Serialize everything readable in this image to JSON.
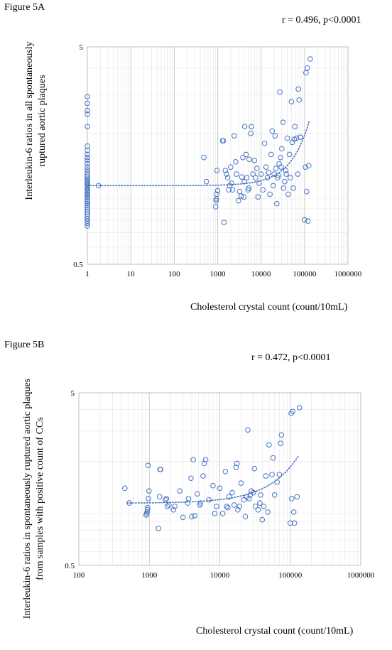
{
  "figures": {
    "a": {
      "label": "Figure 5A",
      "stat": "r = 0.496, p<0.0001",
      "ylabel_line1": "Interleukin-6 ratios in all spontaneously",
      "ylabel_line2": "ruptured aortic plaques",
      "xlabel": "Cholesterol crystal count (count/10mL)"
    },
    "b": {
      "label": "Figure 5B",
      "stat": "r = 0.472, p<0.0001",
      "ylabel_line1": "Interleukin-6 ratios in spontaneously ruptured aortic plaques",
      "ylabel_line2": "from samples with positive count of CCs",
      "xlabel": "Cholesterol crystal count (count/10mL)"
    }
  },
  "colors": {
    "marker": "#4472c4",
    "grid": "#d9d9d9",
    "axis": "#bfbfbf"
  },
  "chart_data": [
    {
      "type": "scatter",
      "title": "Figure 5A",
      "annotation": "r = 0.496, p<0.0001",
      "xlabel": "Cholesterol crystal count (count/10mL)",
      "ylabel": "Interleukin-6 ratios in all spontaneously ruptured aortic plaques",
      "xscale": "log",
      "yscale": "log",
      "xlim": [
        1,
        1000000
      ],
      "ylim": [
        0.5,
        5
      ],
      "xticks": [
        "1",
        "10",
        "100",
        "1000",
        "10000",
        "100000",
        "1000000"
      ],
      "yticks": [
        "0.5",
        "5"
      ],
      "grid": true,
      "trendline": {
        "style": "dotted",
        "x": [
          1,
          130000
        ],
        "y": [
          1.15,
          2.3
        ]
      },
      "points": [
        [
          1,
          0.75
        ],
        [
          1,
          0.77
        ],
        [
          1,
          0.79
        ],
        [
          1,
          0.81
        ],
        [
          1,
          0.83
        ],
        [
          1,
          0.85
        ],
        [
          1,
          0.87
        ],
        [
          1,
          0.89
        ],
        [
          1,
          0.91
        ],
        [
          1,
          0.93
        ],
        [
          1,
          0.95
        ],
        [
          1,
          0.97
        ],
        [
          1,
          0.99
        ],
        [
          1,
          1.01
        ],
        [
          1,
          1.03
        ],
        [
          1,
          1.05
        ],
        [
          1,
          1.07
        ],
        [
          1,
          1.09
        ],
        [
          1,
          1.11
        ],
        [
          1,
          1.13
        ],
        [
          1,
          1.15
        ],
        [
          1,
          1.17
        ],
        [
          1,
          1.19
        ],
        [
          1,
          1.21
        ],
        [
          1,
          1.23
        ],
        [
          1,
          1.26
        ],
        [
          1,
          1.29
        ],
        [
          1,
          1.32
        ],
        [
          1,
          1.36
        ],
        [
          1,
          1.4
        ],
        [
          1,
          1.45
        ],
        [
          1,
          1.5
        ],
        [
          1,
          1.55
        ],
        [
          1,
          1.6
        ],
        [
          1,
          1.67
        ],
        [
          1,
          1.75
        ],
        [
          1,
          2.15
        ],
        [
          1,
          2.45
        ],
        [
          1,
          2.55
        ],
        [
          1,
          2.75
        ],
        [
          1,
          2.95
        ],
        [
          1.8,
          1.15
        ],
        [
          480,
          1.55
        ],
        [
          550,
          1.2
        ],
        [
          900,
          0.92
        ],
        [
          920,
          0.98
        ],
        [
          930,
          1.0
        ],
        [
          950,
          1.05
        ],
        [
          970,
          1.35
        ],
        [
          1000,
          1.09
        ],
        [
          1300,
          1.85
        ],
        [
          1350,
          1.85
        ],
        [
          1400,
          0.78
        ],
        [
          1500,
          1.35
        ],
        [
          1600,
          1.3
        ],
        [
          1700,
          1.25
        ],
        [
          1800,
          1.1
        ],
        [
          1900,
          1.15
        ],
        [
          2000,
          1.4
        ],
        [
          2100,
          1.18
        ],
        [
          2200,
          1.1
        ],
        [
          2400,
          1.95
        ],
        [
          2600,
          1.48
        ],
        [
          2700,
          1.3
        ],
        [
          3000,
          0.98
        ],
        [
          3200,
          1.08
        ],
        [
          3500,
          1.03
        ],
        [
          3600,
          1.26
        ],
        [
          3800,
          1.55
        ],
        [
          4000,
          1.02
        ],
        [
          4100,
          1.2
        ],
        [
          4200,
          2.15
        ],
        [
          4500,
          1.6
        ],
        [
          4700,
          1.25
        ],
        [
          5000,
          1.1
        ],
        [
          5200,
          1.12
        ],
        [
          5300,
          1.52
        ],
        [
          5800,
          2.0
        ],
        [
          6000,
          2.15
        ],
        [
          6500,
          1.3
        ],
        [
          7000,
          1.5
        ],
        [
          7500,
          1.25
        ],
        [
          8000,
          1.38
        ],
        [
          8500,
          1.02
        ],
        [
          9000,
          1.18
        ],
        [
          10000,
          1.3
        ],
        [
          11000,
          1.1
        ],
        [
          12000,
          1.8
        ],
        [
          13000,
          1.4
        ],
        [
          14000,
          1.25
        ],
        [
          15000,
          1.32
        ],
        [
          16000,
          1.05
        ],
        [
          17000,
          1.6
        ],
        [
          18000,
          2.05
        ],
        [
          19000,
          1.15
        ],
        [
          20000,
          1.3
        ],
        [
          21000,
          1.95
        ],
        [
          22000,
          1.38
        ],
        [
          23000,
          0.95
        ],
        [
          24000,
          1.25
        ],
        [
          25000,
          1.28
        ],
        [
          26000,
          1.45
        ],
        [
          27000,
          3.1
        ],
        [
          28000,
          1.55
        ],
        [
          29000,
          1.4
        ],
        [
          30000,
          1.7
        ],
        [
          32000,
          2.25
        ],
        [
          33000,
          1.12
        ],
        [
          35000,
          1.2
        ],
        [
          37000,
          1.35
        ],
        [
          38000,
          1.3
        ],
        [
          40000,
          1.9
        ],
        [
          42000,
          1.05
        ],
        [
          45000,
          1.6
        ],
        [
          47000,
          1.25
        ],
        [
          50000,
          2.8
        ],
        [
          52000,
          1.82
        ],
        [
          55000,
          1.12
        ],
        [
          58000,
          1.88
        ],
        [
          60000,
          2.15
        ],
        [
          65000,
          1.9
        ],
        [
          70000,
          1.3
        ],
        [
          72000,
          3.2
        ],
        [
          75000,
          2.85
        ],
        [
          80000,
          1.92
        ],
        [
          100000,
          0.8
        ],
        [
          105000,
          1.4
        ],
        [
          108000,
          3.8
        ],
        [
          112000,
          1.08
        ],
        [
          116000,
          4.0
        ],
        [
          120000,
          0.79
        ],
        [
          125000,
          1.42
        ],
        [
          135000,
          4.4
        ]
      ]
    },
    {
      "type": "scatter",
      "title": "Figure 5B",
      "annotation": "r = 0.472, p<0.0001",
      "xlabel": "Cholesterol crystal count (count/10mL)",
      "ylabel": "Interleukin-6 ratios in spontaneously ruptured aortic plaques from samples with positive count of CCs",
      "xscale": "log",
      "yscale": "log",
      "xlim": [
        100,
        1000000
      ],
      "ylim": [
        0.5,
        5
      ],
      "xticks": [
        "100",
        "1000",
        "10000",
        "100000",
        "1000000"
      ],
      "yticks": [
        "0.5",
        "5"
      ],
      "grid": true,
      "trendline": {
        "style": "dotted",
        "x": [
          480,
          130000
        ],
        "y": [
          1.15,
          2.15
        ]
      },
      "points": [
        [
          450,
          1.4
        ],
        [
          520,
          1.15
        ],
        [
          900,
          0.98
        ],
        [
          920,
          1.0
        ],
        [
          930,
          1.02
        ],
        [
          940,
          1.05
        ],
        [
          950,
          1.08
        ],
        [
          960,
          1.9
        ],
        [
          970,
          1.22
        ],
        [
          990,
          1.35
        ],
        [
          1350,
          0.82
        ],
        [
          1400,
          1.25
        ],
        [
          1420,
          1.8
        ],
        [
          1440,
          1.8
        ],
        [
          1700,
          1.2
        ],
        [
          1750,
          1.22
        ],
        [
          1800,
          1.1
        ],
        [
          1900,
          1.12
        ],
        [
          2200,
          1.05
        ],
        [
          2300,
          1.1
        ],
        [
          2700,
          1.35
        ],
        [
          3000,
          0.95
        ],
        [
          3500,
          1.15
        ],
        [
          3600,
          1.22
        ],
        [
          3900,
          1.6
        ],
        [
          4000,
          0.96
        ],
        [
          4200,
          2.05
        ],
        [
          4400,
          0.97
        ],
        [
          4800,
          1.3
        ],
        [
          5200,
          1.12
        ],
        [
          5300,
          1.15
        ],
        [
          5800,
          1.65
        ],
        [
          6000,
          1.95
        ],
        [
          6300,
          2.05
        ],
        [
          7000,
          1.2
        ],
        [
          8000,
          1.45
        ],
        [
          8500,
          1.0
        ],
        [
          9000,
          1.1
        ],
        [
          10000,
          1.4
        ],
        [
          11000,
          1.0
        ],
        [
          12000,
          1.75
        ],
        [
          12500,
          1.1
        ],
        [
          13000,
          1.08
        ],
        [
          13500,
          1.25
        ],
        [
          15000,
          1.32
        ],
        [
          16000,
          1.12
        ],
        [
          17000,
          1.85
        ],
        [
          17500,
          1.95
        ],
        [
          18000,
          1.05
        ],
        [
          19000,
          1.1
        ],
        [
          20000,
          1.5
        ],
        [
          22000,
          1.2
        ],
        [
          23000,
          0.96
        ],
        [
          24000,
          1.25
        ],
        [
          25000,
          3.05
        ],
        [
          26000,
          1.22
        ],
        [
          27000,
          1.28
        ],
        [
          28000,
          1.35
        ],
        [
          30000,
          1.32
        ],
        [
          31000,
          1.82
        ],
        [
          32000,
          1.1
        ],
        [
          35000,
          1.05
        ],
        [
          37000,
          1.15
        ],
        [
          38000,
          1.28
        ],
        [
          40000,
          0.92
        ],
        [
          42000,
          1.1
        ],
        [
          45000,
          1.65
        ],
        [
          48000,
          1.02
        ],
        [
          50000,
          2.5
        ],
        [
          55000,
          1.68
        ],
        [
          57000,
          2.1
        ],
        [
          60000,
          1.28
        ],
        [
          65000,
          1.52
        ],
        [
          70000,
          1.68
        ],
        [
          73000,
          2.55
        ],
        [
          75000,
          2.85
        ],
        [
          100000,
          0.88
        ],
        [
          103000,
          3.8
        ],
        [
          105000,
          1.22
        ],
        [
          108000,
          3.9
        ],
        [
          112000,
          1.02
        ],
        [
          115000,
          0.88
        ],
        [
          125000,
          1.25
        ],
        [
          135000,
          4.1
        ]
      ]
    }
  ]
}
